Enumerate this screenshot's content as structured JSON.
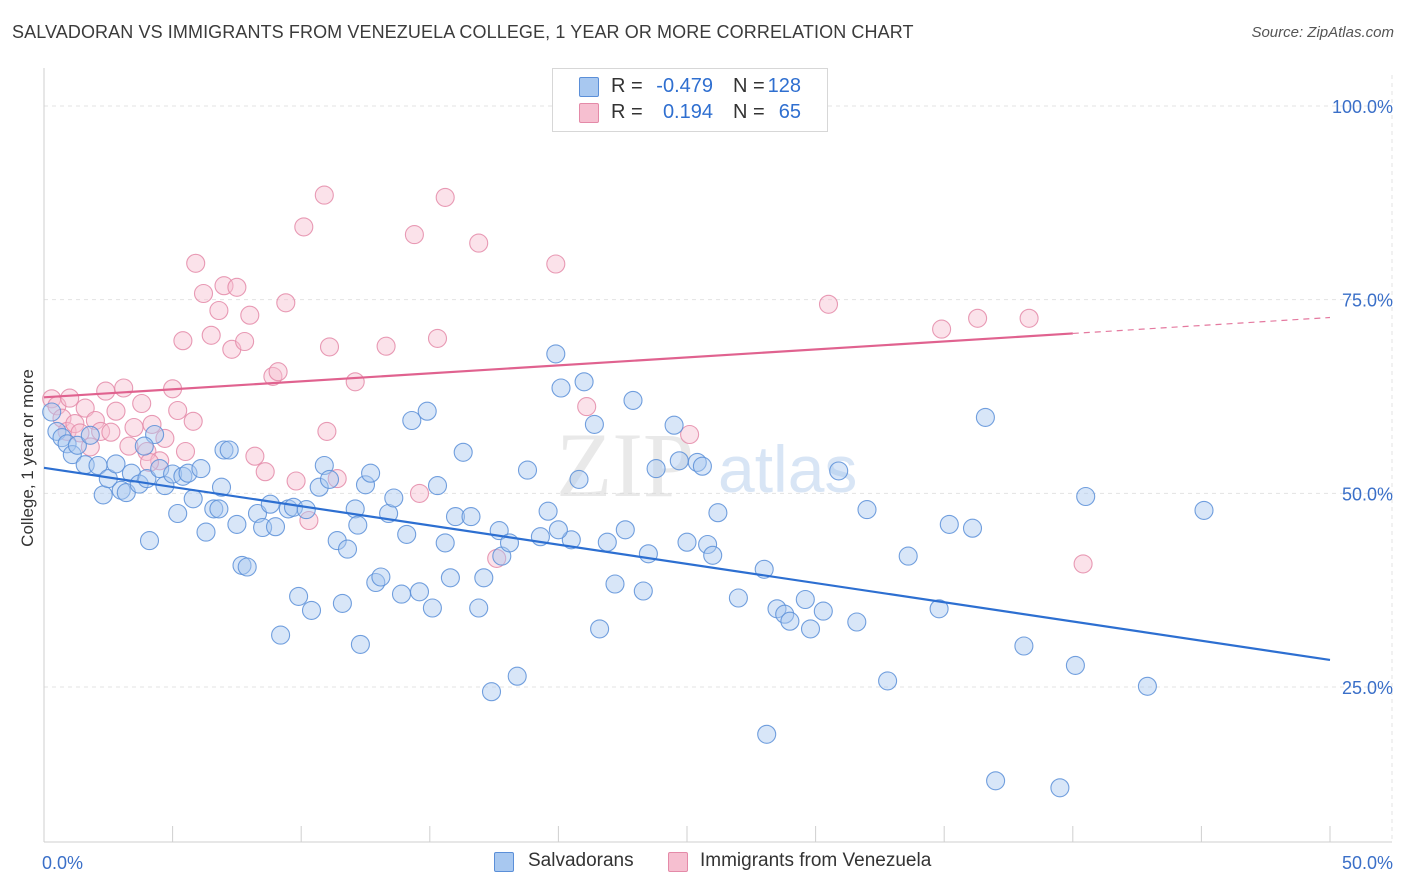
{
  "header": {
    "title": "SALVADORAN VS IMMIGRANTS FROM VENEZUELA COLLEGE, 1 YEAR OR MORE CORRELATION CHART",
    "source": "Source: ZipAtlas.com"
  },
  "colors": {
    "blue_fill": "#a8c8f0",
    "blue_stroke": "#5b8fd8",
    "blue_line": "#2d6fd1",
    "pink_fill": "#f6bfd0",
    "pink_stroke": "#e48aa8",
    "pink_line": "#e0628f",
    "axis_text": "#3a6fc8",
    "grid": "#e3e3e3"
  },
  "legend": {
    "rows": [
      {
        "r_label": "R =",
        "r_value": "-0.479",
        "n_label": "N =",
        "n_value": "128",
        "color": "blue"
      },
      {
        "r_label": "R =",
        "r_value": "0.194",
        "n_label": "N =",
        "n_value": "65",
        "color": "pink"
      }
    ]
  },
  "bottom_legend": {
    "items": [
      {
        "label": "Salvadorans",
        "color": "blue"
      },
      {
        "label": "Immigrants from Venezuela",
        "color": "pink"
      }
    ]
  },
  "watermark": {
    "zip": "ZIP",
    "atlas": "atlas"
  },
  "chart_data": {
    "type": "scatter",
    "title": "SALVADORAN VS IMMIGRANTS FROM VENEZUELA COLLEGE, 1 YEAR OR MORE CORRELATION CHART",
    "xlabel": "",
    "ylabel": "College, 1 year or more",
    "xlim": [
      0,
      50
    ],
    "ylim": [
      5,
      104
    ],
    "x_tick_labels": [
      "0.0%",
      "50.0%"
    ],
    "y_ticks": [
      25,
      50,
      75,
      100
    ],
    "y_tick_labels": [
      "25.0%",
      "50.0%",
      "75.0%",
      "100.0%"
    ],
    "grid": true,
    "series": [
      {
        "name": "Salvadorans",
        "color": "blue",
        "R": -0.479,
        "N": 128,
        "trend": {
          "x0": 0,
          "y0": 53.3,
          "x1": 50,
          "y1": 28.5,
          "dashed_from": null
        },
        "points": [
          [
            0.3,
            60.5
          ],
          [
            0.5,
            58.0
          ],
          [
            0.7,
            57.2
          ],
          [
            0.9,
            56.4
          ],
          [
            1.1,
            55.0
          ],
          [
            1.3,
            56.2
          ],
          [
            1.6,
            53.7
          ],
          [
            1.8,
            57.5
          ],
          [
            2.1,
            53.6
          ],
          [
            2.3,
            49.8
          ],
          [
            2.5,
            51.9
          ],
          [
            2.8,
            53.8
          ],
          [
            3.0,
            50.4
          ],
          [
            3.2,
            50.1
          ],
          [
            3.4,
            52.6
          ],
          [
            3.7,
            51.2
          ],
          [
            4.0,
            51.9
          ],
          [
            4.1,
            43.9
          ],
          [
            4.3,
            57.6
          ],
          [
            4.5,
            53.2
          ],
          [
            4.7,
            51.0
          ],
          [
            5.0,
            52.5
          ],
          [
            5.2,
            47.4
          ],
          [
            5.4,
            52.2
          ],
          [
            5.6,
            52.6
          ],
          [
            5.8,
            49.3
          ],
          [
            6.1,
            53.2
          ],
          [
            6.3,
            45.0
          ],
          [
            6.6,
            48.0
          ],
          [
            6.8,
            48.0
          ],
          [
            7.0,
            55.6
          ],
          [
            7.2,
            55.6
          ],
          [
            7.5,
            46.0
          ],
          [
            7.7,
            40.7
          ],
          [
            7.9,
            40.5
          ],
          [
            8.3,
            47.4
          ],
          [
            8.5,
            45.6
          ],
          [
            8.8,
            48.6
          ],
          [
            9.0,
            45.7
          ],
          [
            9.2,
            31.7
          ],
          [
            9.5,
            48.0
          ],
          [
            9.7,
            48.2
          ],
          [
            9.9,
            36.7
          ],
          [
            10.2,
            47.9
          ],
          [
            10.4,
            34.9
          ],
          [
            10.7,
            50.8
          ],
          [
            10.9,
            53.6
          ],
          [
            11.1,
            51.8
          ],
          [
            11.4,
            43.9
          ],
          [
            11.6,
            35.8
          ],
          [
            11.8,
            42.8
          ],
          [
            12.1,
            48.0
          ],
          [
            12.3,
            30.5
          ],
          [
            12.5,
            51.1
          ],
          [
            12.7,
            52.6
          ],
          [
            12.9,
            38.5
          ],
          [
            13.1,
            39.2
          ],
          [
            13.4,
            47.4
          ],
          [
            13.6,
            49.4
          ],
          [
            13.9,
            37.0
          ],
          [
            14.1,
            44.7
          ],
          [
            14.3,
            59.4
          ],
          [
            14.6,
            37.3
          ],
          [
            14.9,
            60.6
          ],
          [
            15.1,
            35.2
          ],
          [
            15.3,
            51.0
          ],
          [
            15.6,
            43.6
          ],
          [
            15.8,
            39.1
          ],
          [
            16.0,
            47.0
          ],
          [
            16.3,
            55.3
          ],
          [
            16.6,
            47.0
          ],
          [
            16.9,
            35.2
          ],
          [
            17.1,
            39.1
          ],
          [
            17.4,
            24.4
          ],
          [
            17.7,
            45.2
          ],
          [
            17.8,
            41.9
          ],
          [
            18.1,
            43.6
          ],
          [
            18.4,
            26.4
          ],
          [
            18.8,
            53.0
          ],
          [
            19.3,
            44.4
          ],
          [
            19.6,
            47.7
          ],
          [
            19.9,
            68.0
          ],
          [
            20.1,
            63.6
          ],
          [
            20.5,
            44.0
          ],
          [
            20.8,
            51.8
          ],
          [
            21.0,
            64.4
          ],
          [
            21.4,
            58.9
          ],
          [
            21.6,
            32.5
          ],
          [
            21.9,
            43.7
          ],
          [
            22.2,
            38.3
          ],
          [
            22.6,
            45.3
          ],
          [
            22.9,
            62.0
          ],
          [
            23.3,
            37.4
          ],
          [
            23.5,
            42.2
          ],
          [
            23.8,
            53.2
          ],
          [
            24.5,
            58.8
          ],
          [
            24.7,
            54.2
          ],
          [
            25.0,
            43.7
          ],
          [
            25.4,
            54.0
          ],
          [
            25.6,
            53.5
          ],
          [
            25.8,
            43.4
          ],
          [
            26.0,
            42.0
          ],
          [
            27.0,
            36.5
          ],
          [
            28.0,
            40.2
          ],
          [
            28.1,
            18.9
          ],
          [
            28.5,
            35.1
          ],
          [
            28.8,
            34.4
          ],
          [
            29.0,
            33.5
          ],
          [
            29.6,
            36.3
          ],
          [
            29.8,
            32.5
          ],
          [
            30.3,
            34.8
          ],
          [
            30.9,
            52.9
          ],
          [
            31.6,
            33.4
          ],
          [
            32.8,
            25.8
          ],
          [
            33.6,
            41.9
          ],
          [
            34.8,
            35.1
          ],
          [
            35.2,
            46.0
          ],
          [
            36.6,
            59.8
          ],
          [
            37.0,
            12.9
          ],
          [
            36.1,
            45.5
          ],
          [
            38.1,
            30.3
          ],
          [
            39.5,
            12.0
          ],
          [
            40.1,
            27.8
          ],
          [
            40.5,
            49.6
          ],
          [
            42.9,
            25.1
          ],
          [
            45.1,
            47.8
          ],
          [
            3.9,
            56.1
          ],
          [
            6.9,
            50.8
          ],
          [
            12.2,
            45.9
          ],
          [
            20.0,
            45.3
          ],
          [
            26.2,
            47.5
          ],
          [
            32.0,
            47.9
          ]
        ]
      },
      {
        "name": "Immigrants from Venezuela",
        "color": "pink",
        "R": 0.194,
        "N": 65,
        "trend": {
          "x0": 0,
          "y0": 62.4,
          "x1": 50,
          "y1": 72.7,
          "dashed_from": 40
        },
        "points": [
          [
            0.3,
            62.2
          ],
          [
            0.5,
            61.3
          ],
          [
            0.7,
            59.7
          ],
          [
            0.9,
            58.0
          ],
          [
            1.0,
            62.3
          ],
          [
            1.2,
            59.0
          ],
          [
            1.4,
            57.8
          ],
          [
            1.6,
            61.0
          ],
          [
            1.8,
            56.0
          ],
          [
            2.0,
            59.4
          ],
          [
            2.2,
            58.0
          ],
          [
            2.4,
            63.2
          ],
          [
            2.6,
            57.9
          ],
          [
            2.8,
            60.6
          ],
          [
            3.1,
            63.6
          ],
          [
            3.3,
            56.1
          ],
          [
            3.5,
            58.5
          ],
          [
            3.8,
            61.6
          ],
          [
            4.0,
            55.4
          ],
          [
            4.2,
            58.9
          ],
          [
            4.5,
            54.2
          ],
          [
            4.7,
            57.1
          ],
          [
            5.0,
            63.5
          ],
          [
            5.2,
            60.7
          ],
          [
            5.5,
            55.4
          ],
          [
            5.8,
            59.3
          ],
          [
            5.4,
            69.7
          ],
          [
            5.9,
            79.7
          ],
          [
            6.2,
            75.8
          ],
          [
            6.5,
            70.4
          ],
          [
            6.8,
            73.6
          ],
          [
            7.0,
            76.8
          ],
          [
            7.3,
            68.6
          ],
          [
            7.5,
            76.6
          ],
          [
            7.8,
            69.6
          ],
          [
            8.0,
            73.0
          ],
          [
            8.2,
            54.8
          ],
          [
            8.6,
            52.8
          ],
          [
            8.9,
            65.1
          ],
          [
            9.1,
            65.7
          ],
          [
            9.4,
            74.6
          ],
          [
            9.8,
            51.6
          ],
          [
            10.1,
            84.4
          ],
          [
            10.3,
            46.5
          ],
          [
            10.9,
            88.5
          ],
          [
            11.0,
            58.0
          ],
          [
            11.1,
            68.9
          ],
          [
            11.4,
            51.9
          ],
          [
            12.1,
            64.4
          ],
          [
            13.3,
            69.0
          ],
          [
            14.4,
            83.4
          ],
          [
            14.6,
            50.0
          ],
          [
            15.3,
            70.0
          ],
          [
            15.6,
            88.2
          ],
          [
            16.9,
            82.3
          ],
          [
            17.6,
            41.6
          ],
          [
            19.9,
            79.6
          ],
          [
            21.1,
            61.2
          ],
          [
            25.1,
            57.6
          ],
          [
            30.5,
            74.4
          ],
          [
            34.9,
            71.2
          ],
          [
            36.3,
            72.6
          ],
          [
            38.3,
            72.6
          ],
          [
            40.4,
            40.9
          ],
          [
            4.1,
            54.0
          ]
        ]
      }
    ]
  }
}
